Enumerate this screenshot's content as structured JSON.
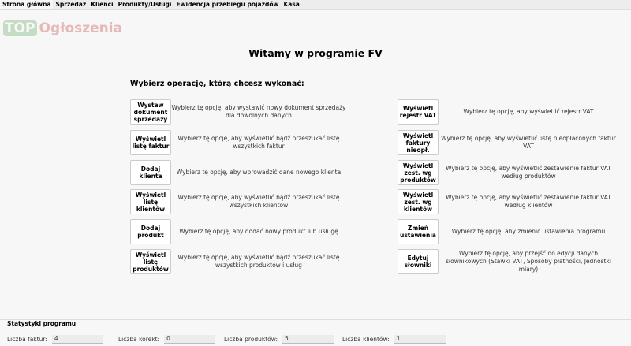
{
  "tabs": [
    "Strona główna",
    "Sprzedaż",
    "Klienci",
    "Produkty/Usługi",
    "Ewidencja przebiegu pojazdów",
    "Kasa"
  ],
  "logo": {
    "top": "TOP",
    "rest": "Ogłoszenia"
  },
  "title": "Witamy w programie FV",
  "subtitle": "Wybierz operację, którą chcesz wykonać:",
  "left": [
    {
      "label": "Wystaw dokument sprzedaży",
      "desc": "Wybierz tę opcję, aby wystawić nowy dokument sprzedaży dla dowolnych danych"
    },
    {
      "label": "Wyświetl listę faktur",
      "desc": "Wybierz tę opcję, aby wyświetlić bądź przeszukać listę wszystkich faktur"
    },
    {
      "label": "Dodaj klienta",
      "desc": "Wybierz tę opcję, aby wprowadzić dane nowego klienta"
    },
    {
      "label": "Wyświetl listę klientów",
      "desc": "Wybierz tę opcję, aby wyświetlić bądź przeszukać listę wszystkich klientów"
    },
    {
      "label": "Dodaj produkt",
      "desc": "Wybierz tę opcję, aby dodać nowy produkt lub usługę"
    },
    {
      "label": "Wyświetl listę produktów",
      "desc": "Wybierz tę opcję, aby wyświetlić bądź przeszukać listę wszystkich produktów i usług"
    }
  ],
  "right": [
    {
      "label": "Wyświetl rejestr VAT",
      "desc": "Wybierz tę opcję, aby wyświetlić rejestr VAT"
    },
    {
      "label": "Wyświetl faktury nieopł.",
      "desc": "Wybierz tę opcję, aby wyświetlić listę nieopłaconych faktur VAT"
    },
    {
      "label": "Wyświetl zest. wg produktów",
      "desc": "Wybierz tę opcję, aby wyświetlić zestawienie faktur VAT według produktów"
    },
    {
      "label": "Wyświetl zest. wg klientów",
      "desc": "Wybierz tę opcję, aby wyświetlić zestawienie faktur VAT według klientów"
    },
    {
      "label": "Zmień ustawienia",
      "desc": "Wybierz tę opcję, aby zmienić ustawienia programu"
    },
    {
      "label": "Edytuj słowniki",
      "desc": "Wybierz tę opcję, aby przejść do edycji danych słownikowych (Stawki VAT, Sposoby płatności, Jednostki miary)"
    }
  ],
  "stats": {
    "title": "Statystyki programu",
    "items": [
      {
        "label": "Liczba faktur:",
        "value": "4"
      },
      {
        "label": "Liczba korekt:",
        "value": "0"
      },
      {
        "label": "Liczba produktów:",
        "value": "5"
      },
      {
        "label": "Liczba klientów:",
        "value": "1"
      }
    ]
  }
}
